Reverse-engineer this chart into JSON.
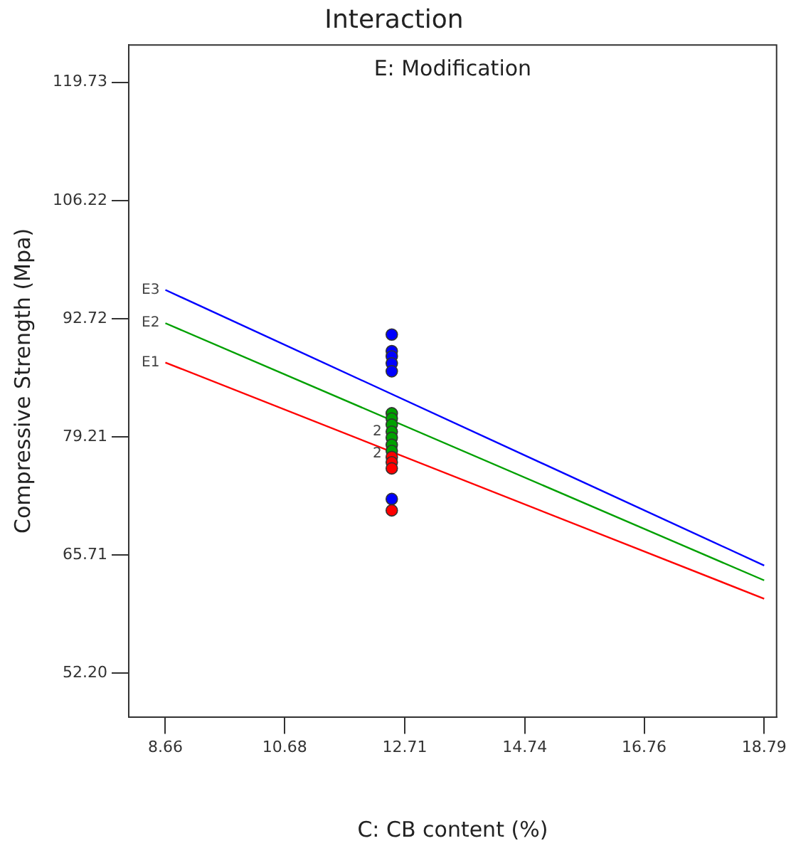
{
  "chart_data": {
    "type": "line",
    "title": "Interaction",
    "subtitle": "E: Modification",
    "xlabel": "C: CB content (%)",
    "ylabel": "Compressive Strength (Mpa)",
    "xlim": [
      8.04,
      19.0
    ],
    "xticks": [
      8.66,
      10.68,
      12.71,
      14.74,
      16.76,
      18.79
    ],
    "ylim": [
      47.2,
      124.0
    ],
    "yticks": [
      {
        "value": 52.2,
        "label": "52.20"
      },
      65.71,
      79.21,
      92.72,
      106.22,
      119.73
    ],
    "grid": false,
    "legend": false,
    "marker": "none",
    "line_style": "solid",
    "series": [
      {
        "name": "E1",
        "color": "#ff0000",
        "x": [
          8.66,
          18.79
        ],
        "values": [
          87.7,
          60.7
        ]
      },
      {
        "name": "E2",
        "color": "#00a000",
        "x": [
          8.66,
          18.79
        ],
        "values": [
          92.2,
          62.8
        ]
      },
      {
        "name": "E3",
        "color": "#0000ff",
        "x": [
          8.66,
          18.79
        ],
        "values": [
          96.0,
          64.5
        ]
      },
      {
        "type": "scatter",
        "marker": "circle",
        "color": "#0000ff",
        "x": [
          12.49,
          12.49,
          12.49,
          12.49,
          12.49,
          12.49
        ],
        "values": [
          90.9,
          89.0,
          88.4,
          87.6,
          86.7,
          72.1
        ]
      },
      {
        "type": "scatter",
        "marker": "circle",
        "color": "#00a000",
        "x": [
          12.49,
          12.49,
          12.49,
          12.49,
          12.49,
          12.49,
          12.49
        ],
        "values": [
          81.9,
          81.3,
          80.6,
          79.8,
          79.1,
          78.3,
          77.6
        ]
      },
      {
        "type": "scatter",
        "marker": "circle",
        "color": "#ff0000",
        "x": [
          12.49,
          12.49,
          12.49,
          12.49
        ],
        "values": [
          76.9,
          76.3,
          75.6,
          70.8
        ]
      }
    ],
    "annotations": [
      {
        "text": "2",
        "x": 12.49,
        "y": 79.8
      },
      {
        "text": "2",
        "x": 12.49,
        "y": 77.3
      }
    ]
  }
}
